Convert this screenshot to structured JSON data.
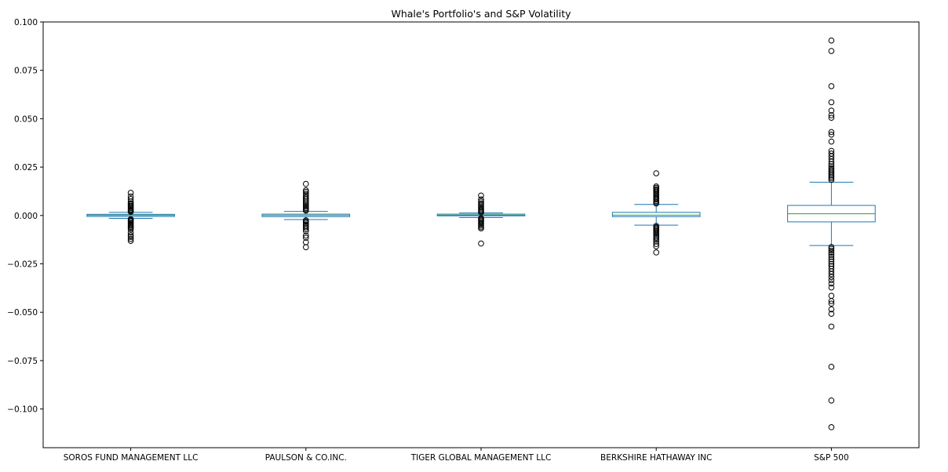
{
  "chart_data": {
    "type": "box",
    "title": "Whale's Portfolio's and S&P Volatility",
    "xlabel": "",
    "ylabel": "",
    "ylim": [
      -0.12,
      0.1
    ],
    "yticks": [
      0.1,
      0.075,
      0.05,
      0.025,
      0.0,
      -0.025,
      -0.05,
      -0.075,
      -0.1
    ],
    "ytick_labels": [
      "0.100",
      "0.075",
      "0.050",
      "0.025",
      "0.000",
      "−0.025",
      "−0.050",
      "−0.075",
      "−0.100"
    ],
    "grid": false,
    "colors": {
      "box": "#1f77b4",
      "median": "#2ca02c",
      "whisker": "#1f77b4",
      "flier": "#000000"
    },
    "categories": [
      "SOROS FUND MANAGEMENT LLC",
      "PAULSON & CO.INC.",
      "TIGER GLOBAL MANAGEMENT LLC",
      "BERKSHIRE HATHAWAY INC",
      "S&P 500"
    ],
    "boxes": [
      {
        "q1": -0.0005,
        "median": 0.0001,
        "q3": 0.0006,
        "whislo": -0.0015,
        "whishi": 0.0016,
        "fliers": [
          0.0117,
          0.0098,
          0.0085,
          0.0072,
          0.0063,
          0.0057,
          0.005,
          0.0044,
          0.0038,
          0.0032,
          0.0027,
          0.0022,
          0.0019,
          -0.0019,
          -0.0023,
          -0.0028,
          -0.0034,
          -0.004,
          -0.0046,
          -0.0052,
          -0.0058,
          -0.0065,
          -0.0072,
          -0.0088,
          -0.0102,
          -0.0111,
          -0.0121,
          -0.0131
        ]
      },
      {
        "q1": -0.0006,
        "median": 0.0001,
        "q3": 0.0007,
        "whislo": -0.0021,
        "whishi": 0.0021,
        "fliers": [
          0.0163,
          0.013,
          0.0122,
          0.0112,
          0.0102,
          0.0093,
          0.0085,
          0.0076,
          0.0068,
          0.006,
          0.0052,
          0.0045,
          0.0038,
          0.0031,
          0.0025,
          -0.0025,
          -0.0031,
          -0.0038,
          -0.0046,
          -0.0054,
          -0.0062,
          -0.0071,
          -0.0081,
          -0.0104,
          -0.0115,
          -0.0138,
          -0.0164
        ]
      },
      {
        "q1": -0.0002,
        "median": 0.0002,
        "q3": 0.0007,
        "whislo": -0.0011,
        "whishi": 0.0013,
        "fliers": [
          0.0103,
          0.0083,
          0.0072,
          0.0063,
          0.0055,
          0.0047,
          0.004,
          0.0033,
          0.0027,
          0.0021,
          0.0016,
          -0.0014,
          -0.0019,
          -0.0025,
          -0.0031,
          -0.0038,
          -0.0045,
          -0.0052,
          -0.006,
          -0.0067,
          -0.0145
        ]
      },
      {
        "q1": -0.0006,
        "median": 0.0002,
        "q3": 0.0016,
        "whislo": -0.005,
        "whishi": 0.0057,
        "fliers": [
          0.0218,
          0.015,
          0.0143,
          0.0136,
          0.013,
          0.0123,
          0.0116,
          0.0109,
          0.0102,
          0.0095,
          0.0088,
          0.0082,
          0.0075,
          0.0068,
          0.0062,
          -0.0054,
          -0.006,
          -0.0066,
          -0.0072,
          -0.0079,
          -0.0086,
          -0.0093,
          -0.01,
          -0.0108,
          -0.0116,
          -0.0125,
          -0.0134,
          -0.0147,
          -0.0159,
          -0.0191
        ]
      },
      {
        "q1": -0.0033,
        "median": 0.0009,
        "q3": 0.0052,
        "whislo": -0.0155,
        "whishi": 0.0172,
        "fliers": [
          0.0904,
          0.085,
          0.0668,
          0.0585,
          0.0542,
          0.0518,
          0.0505,
          0.0431,
          0.0418,
          0.0382,
          0.0334,
          0.032,
          0.0306,
          0.0292,
          0.0278,
          0.0265,
          0.0254,
          0.0244,
          0.0235,
          0.0226,
          0.0217,
          0.0208,
          0.02,
          0.0192,
          0.0184,
          -0.0163,
          -0.0172,
          -0.0182,
          -0.0192,
          -0.0203,
          -0.0214,
          -0.0226,
          -0.0238,
          -0.025,
          -0.0262,
          -0.0275,
          -0.0289,
          -0.0303,
          -0.0318,
          -0.0334,
          -0.0352,
          -0.0372,
          -0.0415,
          -0.0442,
          -0.0455,
          -0.0485,
          -0.0508,
          -0.0574,
          -0.0782,
          -0.0956,
          -0.1094
        ]
      }
    ]
  }
}
